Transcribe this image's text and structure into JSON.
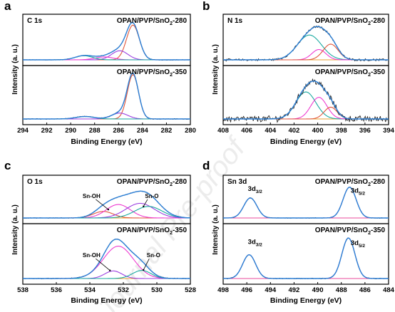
{
  "watermark": "Journal Pre-proof",
  "colors": {
    "measured": "#262626",
    "envelope": "#2b7fd6",
    "baseline": "#e8a033",
    "frame": "#000000",
    "peak_palette": [
      "#e0563b",
      "#9b3fe0",
      "#ee3bd0",
      "#1aa9a0",
      "#e84a9b"
    ]
  },
  "chart_data": [
    {
      "type": "line",
      "panel": "a",
      "title": "C 1s",
      "xlabel": "Binding Energy (eV)",
      "ylabel": "Intensity (a. u.)",
      "xlim": [
        294,
        280
      ],
      "xticks": [
        "294",
        "292",
        "290",
        "288",
        "286",
        "284",
        "282",
        "280"
      ],
      "reversed_x": true,
      "subplots": [
        {
          "label": "OPAN/PVP/SnO",
          "label_sub": "2",
          "label_suffix": "-280",
          "noise": 0.006,
          "peaks": [
            {
              "center": 284.8,
              "height": 0.84,
              "fwhm": 1.25,
              "color": "#e0563b"
            },
            {
              "center": 285.9,
              "height": 0.22,
              "fwhm": 1.6,
              "color": "#9b3fe0"
            },
            {
              "center": 287.2,
              "height": 0.07,
              "fwhm": 1.8,
              "color": "#ee3bd0"
            },
            {
              "center": 288.9,
              "height": 0.1,
              "fwhm": 1.7,
              "color": "#1aa9a0"
            }
          ],
          "annotations": []
        },
        {
          "label": "OPAN/PVP/SnO",
          "label_sub": "2",
          "label_suffix": "-350",
          "noise": 0.006,
          "peaks": [
            {
              "center": 284.8,
              "height": 0.9,
              "fwhm": 1.1,
              "color": "#e0563b"
            },
            {
              "center": 285.9,
              "height": 0.12,
              "fwhm": 1.6,
              "color": "#9b3fe0"
            },
            {
              "center": 288.8,
              "height": 0.05,
              "fwhm": 1.8,
              "color": "#1aa9a0"
            }
          ],
          "annotations": []
        }
      ]
    },
    {
      "type": "line",
      "panel": "b",
      "title": "N 1s",
      "xlabel": "Binding Energy (eV)",
      "ylabel": "Intensity (a. u.)",
      "xlim": [
        408,
        394
      ],
      "xticks": [
        "408",
        "406",
        "404",
        "402",
        "400",
        "398",
        "396",
        "394"
      ],
      "reversed_x": true,
      "subplots": [
        {
          "label": "OPAN/PVP/SnO",
          "label_sub": "2",
          "label_suffix": "-280",
          "noise": 0.02,
          "peaks": [
            {
              "center": 400.7,
              "height": 0.6,
              "fwhm": 2.4,
              "color": "#1aa9a0"
            },
            {
              "center": 399.9,
              "height": 0.25,
              "fwhm": 1.4,
              "color": "#ee3bd0"
            },
            {
              "center": 398.9,
              "height": 0.38,
              "fwhm": 1.5,
              "color": "#e0563b"
            }
          ],
          "annotations": []
        },
        {
          "label": "OPAN/PVP/SnO",
          "label_sub": "2",
          "label_suffix": "-350",
          "noise": 0.05,
          "peaks": [
            {
              "center": 401.0,
              "height": 0.55,
              "fwhm": 2.0,
              "color": "#1aa9a0"
            },
            {
              "center": 399.9,
              "height": 0.44,
              "fwhm": 1.6,
              "color": "#ee3bd0"
            },
            {
              "center": 398.9,
              "height": 0.24,
              "fwhm": 1.3,
              "color": "#e0563b"
            }
          ],
          "annotations": []
        }
      ]
    },
    {
      "type": "line",
      "panel": "c",
      "title": "O 1s",
      "xlabel": "Binding Energy (eV)",
      "ylabel": "Intensity (a. u.)",
      "xlim": [
        538,
        528
      ],
      "xticks": [
        "538",
        "536",
        "534",
        "532",
        "530",
        "528"
      ],
      "reversed_x": true,
      "subplots": [
        {
          "label": "OPAN/PVP/SnO",
          "label_sub": "2",
          "label_suffix": "-280",
          "noise": 0.006,
          "peaks": [
            {
              "center": 533.2,
              "height": 0.17,
              "fwhm": 1.4,
              "color": "#e0563b"
            },
            {
              "center": 532.3,
              "height": 0.35,
              "fwhm": 1.7,
              "color": "#ee3bd0"
            },
            {
              "center": 531.0,
              "height": 0.38,
              "fwhm": 2.0,
              "color": "#9b3fe0"
            },
            {
              "center": 530.5,
              "height": 0.3,
              "fwhm": 1.9,
              "color": "#1aa9a0"
            }
          ],
          "annotations": [
            {
              "text": "Sn-OH",
              "tx": 533.9,
              "ty": 0.52,
              "ax": 532.9,
              "ay": 0.22
            },
            {
              "text": "Sn-O",
              "tx": 530.3,
              "ty": 0.52,
              "ax": 530.8,
              "ay": 0.3
            }
          ]
        },
        {
          "label": "OPAN/PVP/SnO",
          "label_sub": "2",
          "label_suffix": "-350",
          "noise": 0.006,
          "peaks": [
            {
              "center": 532.3,
              "height": 0.64,
              "fwhm": 2.1,
              "color": "#ee3bd0"
            },
            {
              "center": 532.6,
              "height": 0.15,
              "fwhm": 1.2,
              "color": "#9b3fe0"
            },
            {
              "center": 530.9,
              "height": 0.16,
              "fwhm": 1.3,
              "color": "#1aa9a0"
            }
          ],
          "annotations": [
            {
              "text": "Sn-OH",
              "tx": 533.9,
              "ty": 0.42,
              "ax": 532.8,
              "ay": 0.16
            },
            {
              "text": "Sn-O",
              "tx": 530.2,
              "ty": 0.42,
              "ax": 530.8,
              "ay": 0.17
            }
          ]
        }
      ]
    },
    {
      "type": "line",
      "panel": "d",
      "title": "Sn 3d",
      "xlabel": "Binding Energy (eV)",
      "ylabel": "Intensity (a. u.)",
      "xlim": [
        498,
        484
      ],
      "xticks": [
        "498",
        "496",
        "494",
        "492",
        "490",
        "488",
        "486",
        "484"
      ],
      "reversed_x": true,
      "subplots": [
        {
          "label": "OPAN/PVP/SnO",
          "label_sub": "2",
          "label_suffix": "-280",
          "noise": 0.006,
          "peaks": [
            {
              "center": 495.7,
              "height": 0.52,
              "fwhm": 1.3,
              "color": "#e84a9b"
            },
            {
              "center": 487.3,
              "height": 0.8,
              "fwhm": 1.3,
              "color": "#e84a9b"
            }
          ],
          "annotations": [
            {
              "text": "3d",
              "sub": "3/2",
              "tx": 495.3,
              "ty": 0.7
            },
            {
              "text": "3d",
              "sub": "5/2",
              "tx": 486.6,
              "ty": 0.66
            }
          ]
        },
        {
          "label": "OPAN/PVP/SnO",
          "label_sub": "2",
          "label_suffix": "-350",
          "noise": 0.006,
          "peaks": [
            {
              "center": 495.8,
              "height": 0.47,
              "fwhm": 1.3,
              "color": "#e84a9b"
            },
            {
              "center": 487.4,
              "height": 0.8,
              "fwhm": 1.3,
              "color": "#e84a9b"
            }
          ],
          "annotations": [
            {
              "text": "3d",
              "sub": "3/2",
              "tx": 495.3,
              "ty": 0.68
            },
            {
              "text": "3d",
              "sub": "5/2",
              "tx": 486.6,
              "ty": 0.66
            }
          ]
        }
      ]
    }
  ]
}
